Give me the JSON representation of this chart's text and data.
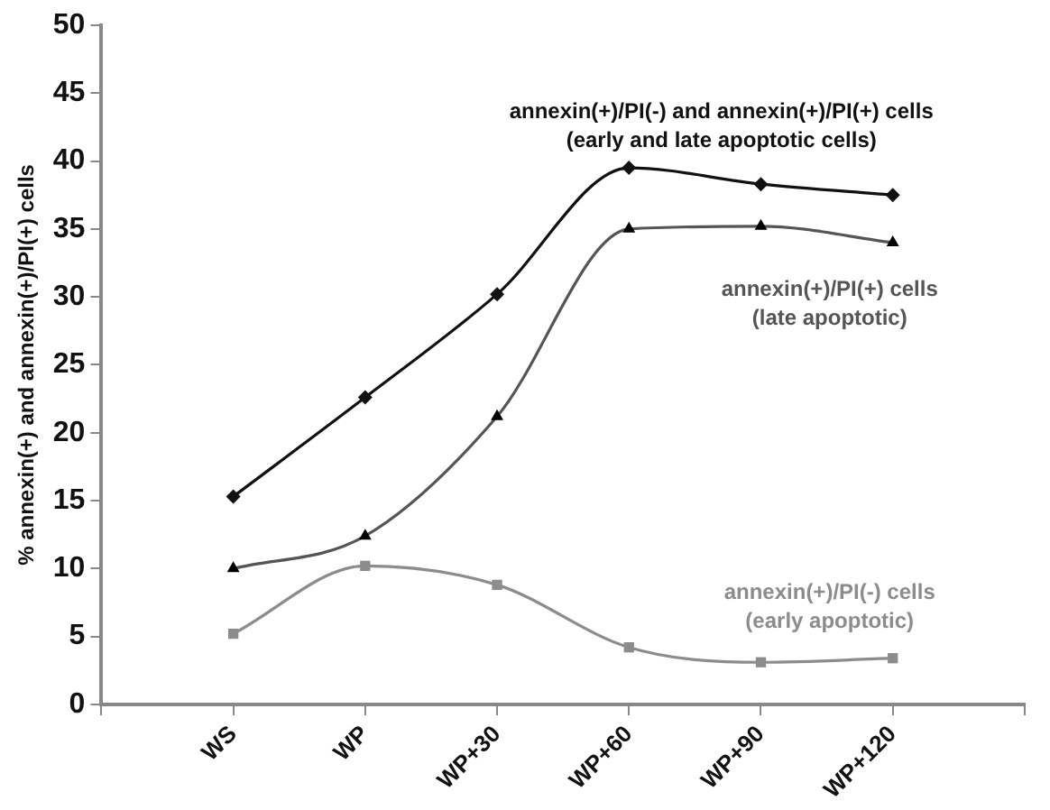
{
  "chart_data": {
    "type": "line",
    "ylabel": "% annexin(+) and annexin(+)/PI(+) cells",
    "categories": [
      null,
      "WS",
      "WP",
      "WP+30",
      "WP+60",
      "WP+90",
      "WP+120",
      null
    ],
    "ylim": [
      0,
      50
    ],
    "yticks": [
      0,
      5,
      10,
      15,
      20,
      25,
      30,
      35,
      40,
      45,
      50
    ],
    "grid": false,
    "legend": false,
    "series": [
      {
        "name": "annexin(+)/PI(-) and annexin(+)/PI(+) cells (early and late apoptotic cells)",
        "color": "#111111",
        "marker": "diamond",
        "values": [
          null,
          15.3,
          22.6,
          30.2,
          39.5,
          38.3,
          37.5,
          null
        ]
      },
      {
        "name": "annexin(+)/PI(+) cells (late apoptotic)",
        "color": "#555555",
        "marker": "triangle",
        "values": [
          null,
          10,
          12.4,
          21.2,
          35,
          35.2,
          34,
          null
        ]
      },
      {
        "name": "annexin(+)/PI(-) cells (early apoptotic)",
        "color": "#8c8c8c",
        "marker": "square",
        "values": [
          null,
          5.2,
          10.2,
          8.8,
          4.2,
          3.1,
          3.4,
          null
        ]
      }
    ]
  }
}
